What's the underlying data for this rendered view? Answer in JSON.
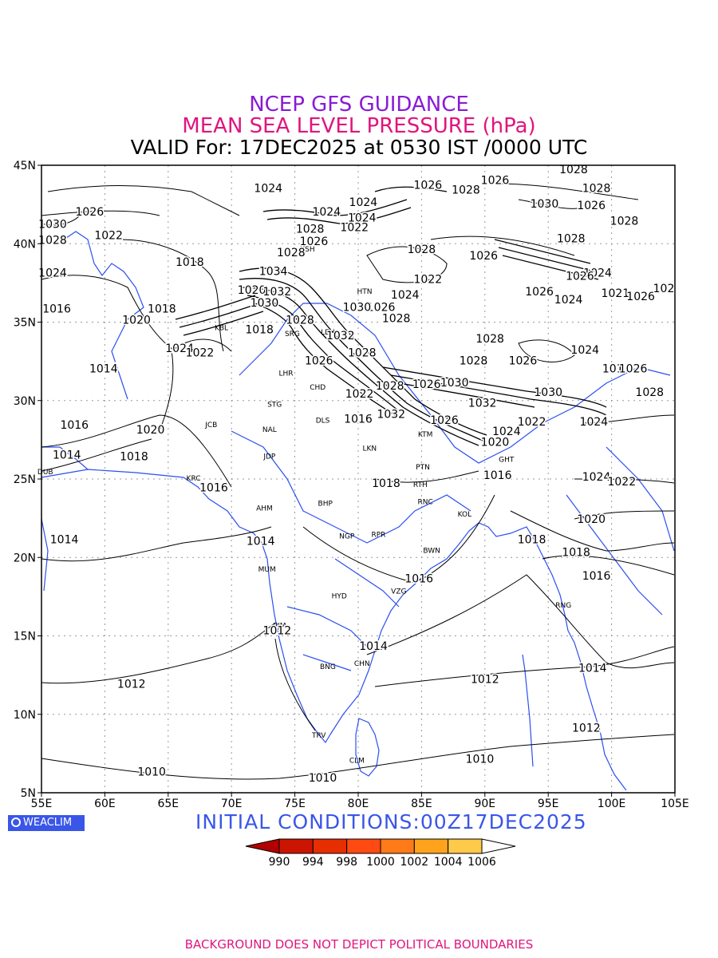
{
  "titles": {
    "line1": "NCEP GFS GUIDANCE",
    "line2": "MEAN SEA LEVEL PRESSURE (hPa)",
    "line3": "VALID For: 17DEC2025 at 0530 IST /0000 UTC"
  },
  "logo": "WEACLIM",
  "initial_conditions": "INITIAL CONDITIONS:00Z17DEC2025",
  "footer": "BACKGROUND DOES NOT DEPICT POLITICAL BOUNDARIES",
  "axes": {
    "lon_ticks": [
      "55E",
      "60E",
      "65E",
      "70E",
      "75E",
      "80E",
      "85E",
      "90E",
      "95E",
      "100E",
      "105E"
    ],
    "lat_ticks": [
      "45N",
      "40N",
      "35N",
      "30N",
      "25N",
      "20N",
      "15N",
      "10N",
      "5N"
    ],
    "lon_range": [
      55,
      105
    ],
    "lat_range": [
      5,
      45
    ]
  },
  "colorbar": {
    "labels": [
      "990",
      "994",
      "998",
      "1000",
      "1002",
      "1004",
      "1006"
    ],
    "colors": [
      "#b30000",
      "#cc1500",
      "#e62e00",
      "#ff4a12",
      "#ff7a18",
      "#ffa31c",
      "#ffc94a",
      "#ffffff"
    ]
  },
  "colors": {
    "coast": "#2b4ff0",
    "contour": "#000000",
    "title1": "#8a1ad6",
    "title2": "#e0157e"
  },
  "cities": [
    {
      "name": "HTN",
      "lon": 80.5,
      "lat": 36.8
    },
    {
      "name": "KSH",
      "lon": 76.0,
      "lat": 39.5
    },
    {
      "name": "LEH",
      "lon": 77.6,
      "lat": 34.2
    },
    {
      "name": "KBL",
      "lon": 69.2,
      "lat": 34.5
    },
    {
      "name": "SRG",
      "lon": 74.8,
      "lat": 34.1
    },
    {
      "name": "LHR",
      "lon": 74.3,
      "lat": 31.6
    },
    {
      "name": "CHD",
      "lon": 76.8,
      "lat": 30.7
    },
    {
      "name": "STG",
      "lon": 73.4,
      "lat": 29.6
    },
    {
      "name": "DLS",
      "lon": 77.2,
      "lat": 28.6
    },
    {
      "name": "JCB",
      "lon": 68.4,
      "lat": 28.3
    },
    {
      "name": "NAL",
      "lon": 73.0,
      "lat": 28.0
    },
    {
      "name": "JDP",
      "lon": 73.0,
      "lat": 26.3
    },
    {
      "name": "LKN",
      "lon": 80.9,
      "lat": 26.8
    },
    {
      "name": "KTM",
      "lon": 85.3,
      "lat": 27.7
    },
    {
      "name": "PTN",
      "lon": 85.1,
      "lat": 25.6
    },
    {
      "name": "GHT",
      "lon": 91.7,
      "lat": 26.1
    },
    {
      "name": "DUB",
      "lon": 55.3,
      "lat": 25.3
    },
    {
      "name": "KRC",
      "lon": 67.0,
      "lat": 24.9
    },
    {
      "name": "AHM",
      "lon": 72.6,
      "lat": 23.0
    },
    {
      "name": "BHP",
      "lon": 77.4,
      "lat": 23.3
    },
    {
      "name": "RTH",
      "lon": 84.9,
      "lat": 24.5
    },
    {
      "name": "RNC",
      "lon": 85.3,
      "lat": 23.4
    },
    {
      "name": "KOL",
      "lon": 88.4,
      "lat": 22.6
    },
    {
      "name": "NGP",
      "lon": 79.1,
      "lat": 21.2
    },
    {
      "name": "RPR",
      "lon": 81.6,
      "lat": 21.3
    },
    {
      "name": "BWN",
      "lon": 85.8,
      "lat": 20.3
    },
    {
      "name": "MUM",
      "lon": 72.8,
      "lat": 19.1
    },
    {
      "name": "HYD",
      "lon": 78.5,
      "lat": 17.4
    },
    {
      "name": "VZG",
      "lon": 83.2,
      "lat": 17.7
    },
    {
      "name": "RNG",
      "lon": 96.2,
      "lat": 16.8
    },
    {
      "name": "PJM",
      "lon": 73.8,
      "lat": 15.5
    },
    {
      "name": "CHN",
      "lon": 80.3,
      "lat": 13.1
    },
    {
      "name": "BNG",
      "lon": 77.6,
      "lat": 12.9
    },
    {
      "name": "TRV",
      "lon": 76.9,
      "lat": 8.5
    },
    {
      "name": "CLM",
      "lon": 79.9,
      "lat": 6.9
    }
  ],
  "contour_labels": [
    {
      "text": "1028",
      "lon": 97.0,
      "lat": 44.7
    },
    {
      "text": "1026",
      "lon": 90.8,
      "lat": 43.8
    },
    {
      "text": "1028",
      "lon": 88.5,
      "lat": 43.2
    },
    {
      "text": "1026",
      "lon": 85.5,
      "lat": 43.5
    },
    {
      "text": "1024",
      "lon": 72.9,
      "lat": 43.3
    },
    {
      "text": "1024",
      "lon": 80.4,
      "lat": 42.4
    },
    {
      "text": "1028",
      "lon": 98.8,
      "lat": 43.3
    },
    {
      "text": "1030",
      "lon": 94.7,
      "lat": 42.3
    },
    {
      "text": "1026",
      "lon": 98.4,
      "lat": 42.2
    },
    {
      "text": "1026",
      "lon": 58.8,
      "lat": 41.8
    },
    {
      "text": "1024",
      "lon": 77.5,
      "lat": 41.8
    },
    {
      "text": "1024",
      "lon": 80.3,
      "lat": 41.4
    },
    {
      "text": "1022",
      "lon": 79.7,
      "lat": 40.8
    },
    {
      "text": "1028",
      "lon": 76.2,
      "lat": 40.7
    },
    {
      "text": "1030",
      "lon": 55.4,
      "lat": 41.0
    },
    {
      "text": "1028",
      "lon": 101.0,
      "lat": 41.2
    },
    {
      "text": "1022",
      "lon": 60.3,
      "lat": 40.3
    },
    {
      "text": "1028",
      "lon": 55.8,
      "lat": 40.0
    },
    {
      "text": "1026",
      "lon": 76.5,
      "lat": 39.9
    },
    {
      "text": "1028",
      "lon": 96.8,
      "lat": 40.1
    },
    {
      "text": "1028",
      "lon": 85.0,
      "lat": 39.4
    },
    {
      "text": "1028",
      "lon": 74.7,
      "lat": 39.2
    },
    {
      "text": "1026",
      "lon": 89.9,
      "lat": 39.0
    },
    {
      "text": "1018",
      "lon": 66.7,
      "lat": 38.6
    },
    {
      "text": "1034",
      "lon": 73.3,
      "lat": 38.0
    },
    {
      "text": "1024",
      "lon": 98.9,
      "lat": 37.9
    },
    {
      "text": "1026",
      "lon": 97.5,
      "lat": 37.7
    },
    {
      "text": "1022",
      "lon": 85.5,
      "lat": 37.5
    },
    {
      "text": "1024",
      "lon": 55.8,
      "lat": 37.9
    },
    {
      "text": "1020",
      "lon": 71.6,
      "lat": 36.8
    },
    {
      "text": "1032",
      "lon": 73.6,
      "lat": 36.7
    },
    {
      "text": "1026",
      "lon": 94.3,
      "lat": 36.7
    },
    {
      "text": "1024",
      "lon": 83.7,
      "lat": 36.5
    },
    {
      "text": "1024",
      "lon": 96.6,
      "lat": 36.2
    },
    {
      "text": "1021",
      "lon": 100.3,
      "lat": 36.6
    },
    {
      "text": "1026",
      "lon": 102.3,
      "lat": 36.4
    },
    {
      "text": "102",
      "lon": 104.2,
      "lat": 36.9
    },
    {
      "text": "1030",
      "lon": 72.6,
      "lat": 36.0
    },
    {
      "text": "1026",
      "lon": 81.8,
      "lat": 35.7
    },
    {
      "text": "1030",
      "lon": 79.9,
      "lat": 35.7
    },
    {
      "text": "1016",
      "lon": 56.2,
      "lat": 35.6
    },
    {
      "text": "1018",
      "lon": 64.5,
      "lat": 35.6
    },
    {
      "text": "1028",
      "lon": 83.0,
      "lat": 35.0
    },
    {
      "text": "1020",
      "lon": 62.5,
      "lat": 34.9
    },
    {
      "text": "1028",
      "lon": 75.4,
      "lat": 34.9
    },
    {
      "text": "1018",
      "lon": 72.2,
      "lat": 34.3
    },
    {
      "text": "1032",
      "lon": 78.6,
      "lat": 33.9
    },
    {
      "text": "1028",
      "lon": 90.4,
      "lat": 33.7
    },
    {
      "text": "1024",
      "lon": 65.9,
      "lat": 33.1
    },
    {
      "text": "1022",
      "lon": 67.5,
      "lat": 32.8
    },
    {
      "text": "1028",
      "lon": 80.3,
      "lat": 32.8
    },
    {
      "text": "1024",
      "lon": 97.9,
      "lat": 33.0
    },
    {
      "text": "1028",
      "lon": 89.1,
      "lat": 32.3
    },
    {
      "text": "1026",
      "lon": 93.0,
      "lat": 32.3
    },
    {
      "text": "1026",
      "lon": 76.9,
      "lat": 32.3
    },
    {
      "text": "1014",
      "lon": 59.9,
      "lat": 31.8
    },
    {
      "text": "101",
      "lon": 100.1,
      "lat": 31.8
    },
    {
      "text": "1026",
      "lon": 101.7,
      "lat": 31.8
    },
    {
      "text": "1030",
      "lon": 87.6,
      "lat": 30.9
    },
    {
      "text": "1026",
      "lon": 85.4,
      "lat": 30.8
    },
    {
      "text": "1028",
      "lon": 82.5,
      "lat": 30.7
    },
    {
      "text": "1022",
      "lon": 80.1,
      "lat": 30.2
    },
    {
      "text": "1030",
      "lon": 95.0,
      "lat": 30.3
    },
    {
      "text": "1028",
      "lon": 103.0,
      "lat": 30.3
    },
    {
      "text": "1032",
      "lon": 89.8,
      "lat": 29.6
    },
    {
      "text": "1032",
      "lon": 82.6,
      "lat": 28.9
    },
    {
      "text": "1016",
      "lon": 80.0,
      "lat": 28.6
    },
    {
      "text": "1026",
      "lon": 86.8,
      "lat": 28.5
    },
    {
      "text": "1022",
      "lon": 93.7,
      "lat": 28.4
    },
    {
      "text": "1024",
      "lon": 98.6,
      "lat": 28.4
    },
    {
      "text": "1016",
      "lon": 57.6,
      "lat": 28.2
    },
    {
      "text": "1020",
      "lon": 63.6,
      "lat": 27.9
    },
    {
      "text": "1024",
      "lon": 91.7,
      "lat": 27.8
    },
    {
      "text": "1020",
      "lon": 90.8,
      "lat": 27.1
    },
    {
      "text": "1014",
      "lon": 57.0,
      "lat": 26.3
    },
    {
      "text": "1018",
      "lon": 62.3,
      "lat": 26.2
    },
    {
      "text": "1016",
      "lon": 91.0,
      "lat": 25.0
    },
    {
      "text": "1024",
      "lon": 98.8,
      "lat": 24.9
    },
    {
      "text": "1022",
      "lon": 100.8,
      "lat": 24.6
    },
    {
      "text": "1016",
      "lon": 68.6,
      "lat": 24.2
    },
    {
      "text": "1018",
      "lon": 82.2,
      "lat": 24.5
    },
    {
      "text": "1020",
      "lon": 98.4,
      "lat": 22.2
    },
    {
      "text": "1018",
      "lon": 93.7,
      "lat": 20.9
    },
    {
      "text": "1014",
      "lon": 56.8,
      "lat": 20.9
    },
    {
      "text": "1014",
      "lon": 72.3,
      "lat": 20.8
    },
    {
      "text": "1018",
      "lon": 97.2,
      "lat": 20.1
    },
    {
      "text": "1016",
      "lon": 98.8,
      "lat": 18.6
    },
    {
      "text": "1016",
      "lon": 84.8,
      "lat": 18.4
    },
    {
      "text": "1012",
      "lon": 73.6,
      "lat": 15.1
    },
    {
      "text": "1014",
      "lon": 81.2,
      "lat": 14.1
    },
    {
      "text": "1014",
      "lon": 98.5,
      "lat": 12.7
    },
    {
      "text": "1012",
      "lon": 90.0,
      "lat": 12.0
    },
    {
      "text": "1012",
      "lon": 62.1,
      "lat": 11.7
    },
    {
      "text": "1012",
      "lon": 98.0,
      "lat": 8.9
    },
    {
      "text": "1010",
      "lon": 89.6,
      "lat": 6.9
    },
    {
      "text": "1010",
      "lon": 63.7,
      "lat": 6.1
    },
    {
      "text": "1010",
      "lon": 77.2,
      "lat": 5.7
    }
  ]
}
